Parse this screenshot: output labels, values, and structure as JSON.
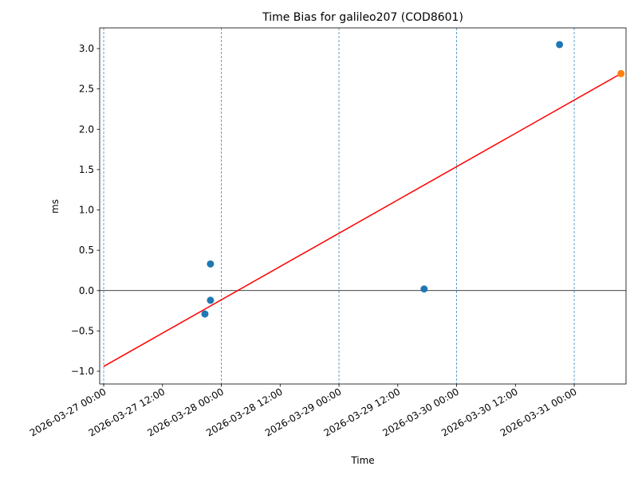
{
  "chart_data": {
    "type": "scatter",
    "title": "Time Bias for galileo207 (COD8601)",
    "x_label": "Time",
    "y_label": "ms",
    "xlim": [
      "2026-03-26 23:11",
      "2026-03-31 10:34"
    ],
    "xticks": [
      "2026-03-27 00:00",
      "2026-03-27 12:00",
      "2026-03-28 00:00",
      "2026-03-28 12:00",
      "2026-03-29 00:00",
      "2026-03-29 12:00",
      "2026-03-30 00:00",
      "2026-03-30 12:00",
      "2026-03-31 00:00"
    ],
    "ylim": [
      -1.158,
      3.257
    ],
    "yticks": [
      {
        "value": -1,
        "label": "−1.0"
      },
      {
        "value": -0.5,
        "label": "−0.5"
      },
      {
        "value": 0,
        "label": "0.0"
      },
      {
        "value": 0.5,
        "label": "0.5"
      },
      {
        "value": 1,
        "label": "1.0"
      },
      {
        "value": 1.5,
        "label": "1.5"
      },
      {
        "value": 2,
        "label": "2.0"
      },
      {
        "value": 2.5,
        "label": "2.5"
      },
      {
        "value": 3,
        "label": "3.0"
      }
    ],
    "vlines": [
      "2026-03-27 00:00",
      "2026-03-28 00:00",
      "2026-03-29 00:00",
      "2026-03-30 00:00",
      "2026-03-31 00:00"
    ],
    "vline_color": "#1f77b4",
    "hline": 0,
    "series": [
      {
        "type": "scatter",
        "color": "#1f77b4",
        "x": [
          "2026-03-27 20:39",
          "2026-03-27 21:47",
          "2026-03-27 21:47",
          "2026-03-29 17:22",
          "2026-03-30 21:00"
        ],
        "values": [
          -0.29,
          -0.12,
          0.33,
          0.02,
          3.05
        ]
      },
      {
        "type": "line",
        "color": "#ff0000",
        "x": [
          "2026-03-27 00:00",
          "2026-03-31 09:32"
        ],
        "values": [
          -0.94,
          2.69
        ]
      },
      {
        "type": "scatter",
        "color": "#ff7f0e",
        "x": [
          "2026-03-31 09:32"
        ],
        "values": [
          2.69
        ]
      }
    ]
  }
}
